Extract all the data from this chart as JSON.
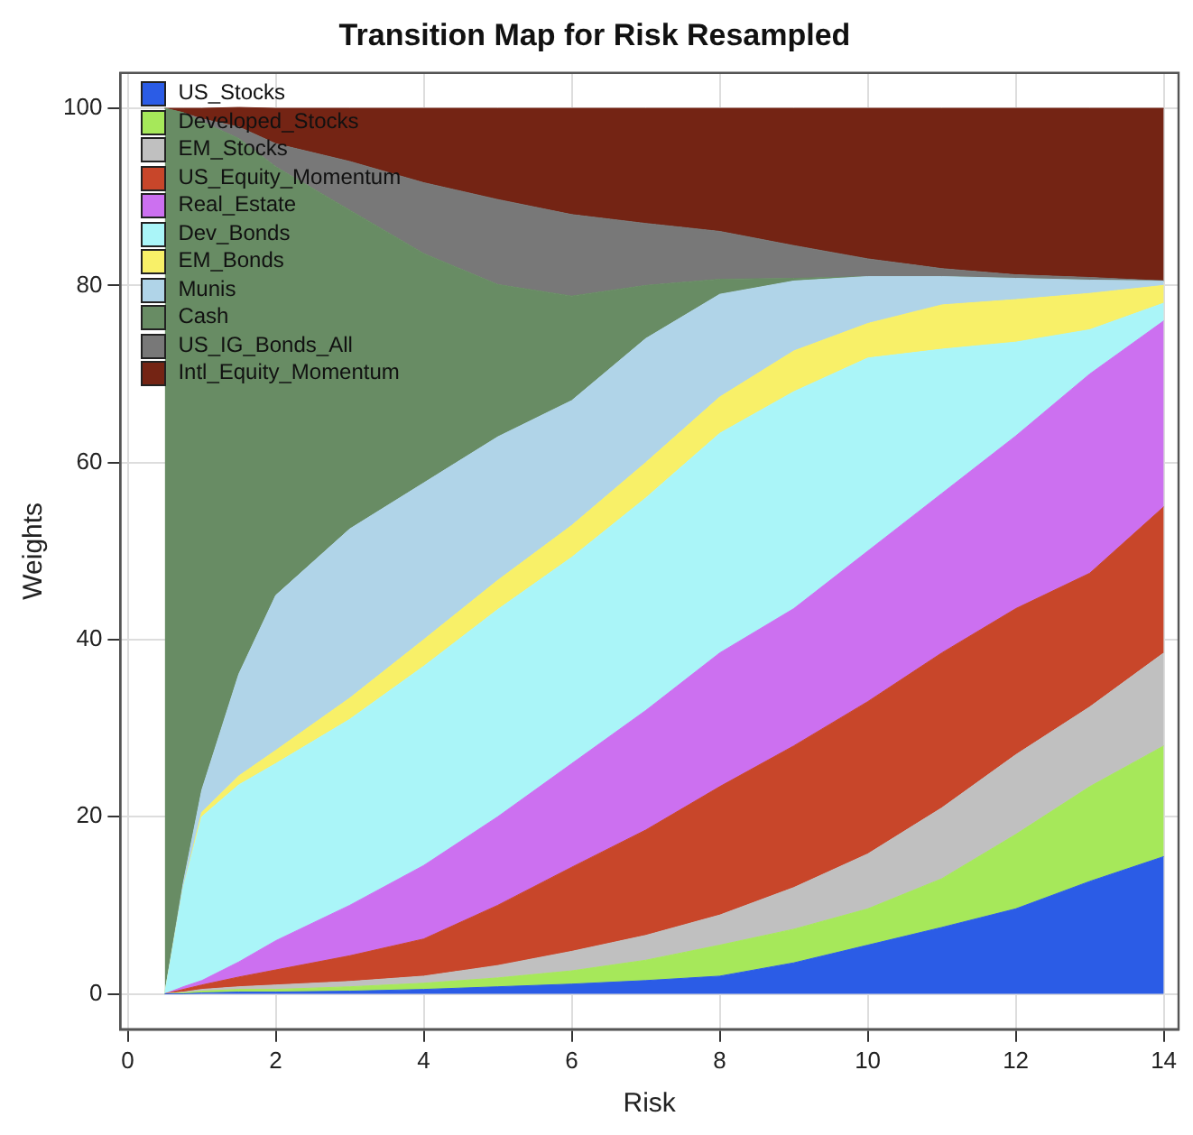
{
  "chart_data": {
    "type": "area",
    "title": "Transition Map for Risk Resampled",
    "xlabel": "Risk",
    "ylabel": "Weights",
    "stacked": true,
    "marker": "none",
    "grid": true,
    "legend": "top left",
    "x": [
      0.5,
      0.75,
      1,
      1.5,
      2,
      3,
      4,
      5,
      6,
      7,
      8,
      9,
      10,
      11,
      12,
      13,
      14
    ],
    "xlim": [
      -0.1,
      14.2
    ],
    "xticks": [
      0,
      2,
      4,
      6,
      8,
      10,
      12,
      14
    ],
    "ylim": [
      -4,
      104
    ],
    "yticks": [
      0,
      20,
      40,
      60,
      80,
      100
    ],
    "series": [
      {
        "name": "US_Stocks",
        "color": "#2b5ce6",
        "values": [
          0,
          0,
          0.1,
          0.2,
          0.2,
          0.3,
          0.5,
          0.8,
          1.1,
          1.5,
          2,
          3.5,
          5.5,
          7.5,
          9.6,
          12.7,
          15.5
        ]
      },
      {
        "name": "Developed_Stocks",
        "color": "#a6e85a",
        "values": [
          0,
          0.1,
          0.2,
          0.3,
          0.3,
          0.5,
          0.7,
          1,
          1.5,
          2.3,
          3.5,
          3.8,
          4.1,
          5.5,
          8.4,
          10.7,
          12.5
        ]
      },
      {
        "name": "EM_Stocks",
        "color": "#c0c0c0",
        "values": [
          0,
          0.1,
          0.2,
          0.3,
          0.5,
          0.6,
          0.8,
          1.4,
          2.2,
          2.8,
          3.4,
          4.7,
          6.2,
          8,
          9,
          9,
          10.5
        ]
      },
      {
        "name": "US_Equity_Momentum",
        "color": "#c8462a",
        "values": [
          0,
          0.3,
          0.5,
          1.1,
          1.7,
          2.9,
          4.2,
          6.8,
          9.5,
          11.9,
          14.5,
          16,
          17.2,
          17.5,
          16.5,
          15.1,
          16.5
        ]
      },
      {
        "name": "Real_Estate",
        "color": "#cc70f0",
        "values": [
          0,
          0.3,
          0.5,
          1.7,
          3.3,
          5.7,
          8.3,
          10,
          11.7,
          13.5,
          15.1,
          15.5,
          17,
          18,
          19.5,
          22.5,
          21
        ]
      },
      {
        "name": "Dev_Bonds",
        "color": "#aaf5f8",
        "values": [
          0,
          11.2,
          18.5,
          20,
          20,
          21,
          22.5,
          23.4,
          23.3,
          24,
          24.8,
          24.5,
          21.8,
          16.3,
          10.6,
          5,
          2
        ]
      },
      {
        "name": "EM_Bonds",
        "color": "#f8f068",
        "values": [
          0,
          0,
          0.5,
          1,
          1.5,
          2.4,
          3,
          3.3,
          3.6,
          4,
          4.1,
          4.6,
          3.9,
          5,
          4.8,
          4.1,
          2
        ]
      },
      {
        "name": "Munis",
        "color": "#b0d4e8",
        "values": [
          0,
          0.5,
          2.5,
          11.5,
          17.5,
          19.1,
          17.7,
          16.2,
          14.1,
          14,
          11.6,
          7.9,
          5.3,
          3.2,
          2.4,
          1.5,
          0.5
        ]
      },
      {
        "name": "Cash",
        "color": "#688c64",
        "values": [
          100,
          87,
          75.5,
          60.5,
          48.4,
          36,
          25.9,
          17.2,
          11.8,
          6,
          1.7,
          0.3,
          0,
          0,
          0,
          0,
          0
        ]
      },
      {
        "name": "US_IG_Bonds_All",
        "color": "#787878",
        "values": [
          0,
          0,
          0.3,
          1.3,
          2.6,
          5.5,
          8,
          9.6,
          9.2,
          7,
          5.4,
          3.7,
          2,
          0.9,
          0.4,
          0.3,
          0
        ]
      },
      {
        "name": "Intl_Equity_Momentum",
        "color": "#742414",
        "values": [
          0,
          0.5,
          1.2,
          2.2,
          4,
          6,
          8.4,
          10.3,
          12,
          13,
          13.9,
          15.5,
          17,
          18.1,
          18.8,
          19.1,
          19.5
        ]
      }
    ]
  }
}
